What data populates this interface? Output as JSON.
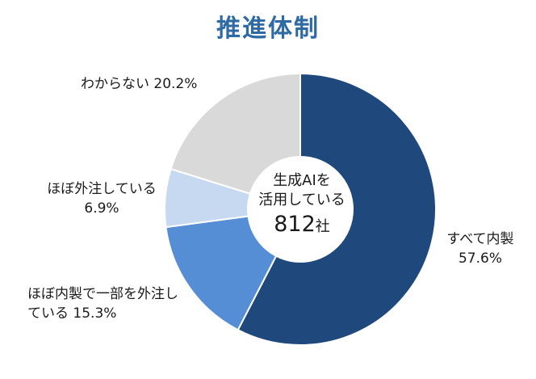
{
  "chart_data": {
    "type": "pie",
    "title": "推進体制",
    "categories": [
      "すべて内製",
      "ほぼ内製で一部を外注し ている",
      "ほぼ外注している",
      "わからない"
    ],
    "values": [
      57.6,
      15.3,
      6.9,
      20.2
    ],
    "unit": "%",
    "colors": [
      "#1f497d",
      "#558ed5",
      "#c6d9f1",
      "#d9d9d9"
    ],
    "value_labels": [
      "57.6%",
      "15.3%",
      "6.9%",
      "20.2%"
    ],
    "center_text": {
      "line1": "生成AIを",
      "line2": "活用している",
      "count": "812",
      "unit": "社"
    },
    "labels": {
      "all_inhouse": {
        "name": "すべて内製",
        "value": "57.6%"
      },
      "mostly_inhouse": {
        "name1": "ほぼ内製で一部を外注し",
        "name2": "ている",
        "value": "15.3%"
      },
      "mostly_outsourced": {
        "name": "ほぼ外注している",
        "value": "6.9%"
      },
      "unknown": {
        "name": "わからない",
        "value": "20.2%"
      }
    }
  }
}
